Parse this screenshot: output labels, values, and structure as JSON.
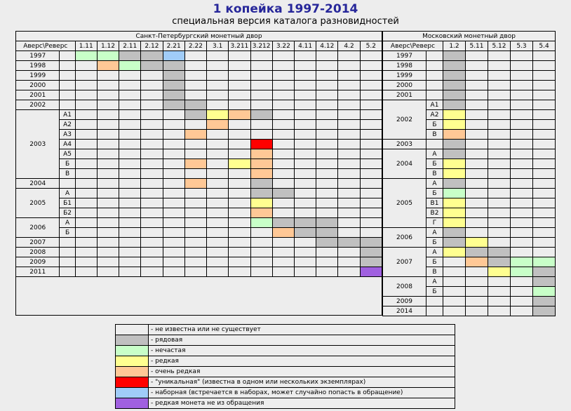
{
  "header": {
    "title": "1 копейка 1997-2014",
    "subtitle": "специальная версия каталога разновидностей"
  },
  "colors": {
    "0": "#ededed",
    "1": "#c0c0c0",
    "2": "#c8ffc8",
    "3": "#ffff90",
    "4": "#ffc896",
    "5": "#ff0000",
    "6": "#a0ccf8",
    "7": "#a060e0"
  },
  "spb": {
    "mint_label": "Санкт-Петербургский монетный двор",
    "corner_label": "Аверс\\Реверс",
    "columns": [
      "1.11",
      "1.12",
      "2.11",
      "2.12",
      "2.21",
      "2.22",
      "3.1",
      "3.211",
      "3.212",
      "3.22",
      "4.11",
      "4.12",
      "4.2",
      "5.2"
    ],
    "rows": [
      {
        "year": "1997",
        "sub": "",
        "cells": [
          2,
          2,
          1,
          1,
          6,
          0,
          0,
          0,
          0,
          0,
          0,
          0,
          0,
          0
        ]
      },
      {
        "year": "1998",
        "sub": "",
        "cells": [
          0,
          4,
          2,
          1,
          1,
          0,
          0,
          0,
          0,
          0,
          0,
          0,
          0,
          0
        ]
      },
      {
        "year": "1999",
        "sub": "",
        "cells": [
          0,
          0,
          0,
          0,
          1,
          0,
          0,
          0,
          0,
          0,
          0,
          0,
          0,
          0
        ]
      },
      {
        "year": "2000",
        "sub": "",
        "cells": [
          0,
          0,
          0,
          0,
          1,
          0,
          0,
          0,
          0,
          0,
          0,
          0,
          0,
          0
        ]
      },
      {
        "year": "2001",
        "sub": "",
        "cells": [
          0,
          0,
          0,
          0,
          1,
          0,
          0,
          0,
          0,
          0,
          0,
          0,
          0,
          0
        ]
      },
      {
        "year": "2002",
        "sub": "",
        "cells": [
          0,
          0,
          0,
          0,
          1,
          1,
          0,
          0,
          0,
          0,
          0,
          0,
          0,
          0
        ]
      },
      {
        "year": "2003",
        "sub": "А1",
        "cells": [
          0,
          0,
          0,
          0,
          0,
          1,
          3,
          4,
          1,
          0,
          0,
          0,
          0,
          0
        ]
      },
      {
        "year": "2003",
        "sub": "А2",
        "cells": [
          0,
          0,
          0,
          0,
          0,
          0,
          4,
          0,
          0,
          0,
          0,
          0,
          0,
          0
        ]
      },
      {
        "year": "2003",
        "sub": "А3",
        "cells": [
          0,
          0,
          0,
          0,
          0,
          4,
          0,
          0,
          0,
          0,
          0,
          0,
          0,
          0
        ]
      },
      {
        "year": "2003",
        "sub": "А4",
        "cells": [
          0,
          0,
          0,
          0,
          0,
          0,
          0,
          0,
          5,
          0,
          0,
          0,
          0,
          0
        ]
      },
      {
        "year": "2003",
        "sub": "А5",
        "cells": [
          0,
          0,
          0,
          0,
          0,
          0,
          0,
          0,
          4,
          0,
          0,
          0,
          0,
          0
        ]
      },
      {
        "year": "2003",
        "sub": "Б",
        "cells": [
          0,
          0,
          0,
          0,
          0,
          4,
          0,
          3,
          4,
          0,
          0,
          0,
          0,
          0
        ]
      },
      {
        "year": "2003",
        "sub": "В",
        "cells": [
          0,
          0,
          0,
          0,
          0,
          0,
          0,
          0,
          4,
          0,
          0,
          0,
          0,
          0
        ]
      },
      {
        "year": "2004",
        "sub": "",
        "cells": [
          0,
          0,
          0,
          0,
          0,
          4,
          0,
          0,
          1,
          0,
          0,
          0,
          0,
          0
        ]
      },
      {
        "year": "2005",
        "sub": "А",
        "cells": [
          0,
          0,
          0,
          0,
          0,
          0,
          0,
          0,
          1,
          1,
          0,
          0,
          0,
          0
        ]
      },
      {
        "year": "2005",
        "sub": "Б1",
        "cells": [
          0,
          0,
          0,
          0,
          0,
          0,
          0,
          0,
          3,
          0,
          0,
          0,
          0,
          0
        ]
      },
      {
        "year": "2005",
        "sub": "Б2",
        "cells": [
          0,
          0,
          0,
          0,
          0,
          0,
          0,
          0,
          4,
          0,
          0,
          0,
          0,
          0
        ]
      },
      {
        "year": "2006",
        "sub": "А",
        "cells": [
          0,
          0,
          0,
          0,
          0,
          0,
          0,
          0,
          2,
          1,
          1,
          1,
          0,
          0
        ]
      },
      {
        "year": "2006",
        "sub": "Б",
        "cells": [
          0,
          0,
          0,
          0,
          0,
          0,
          0,
          0,
          0,
          4,
          1,
          1,
          0,
          0
        ]
      },
      {
        "year": "2007",
        "sub": "",
        "cells": [
          0,
          0,
          0,
          0,
          0,
          0,
          0,
          0,
          0,
          0,
          0,
          1,
          1,
          1
        ]
      },
      {
        "year": "2008",
        "sub": "",
        "cells": [
          0,
          0,
          0,
          0,
          0,
          0,
          0,
          0,
          0,
          0,
          0,
          0,
          0,
          1
        ]
      },
      {
        "year": "2009",
        "sub": "",
        "cells": [
          0,
          0,
          0,
          0,
          0,
          0,
          0,
          0,
          0,
          0,
          0,
          0,
          0,
          1
        ]
      },
      {
        "year": "2011",
        "sub": "",
        "cells": [
          0,
          0,
          0,
          0,
          0,
          0,
          0,
          0,
          0,
          0,
          0,
          0,
          0,
          7
        ]
      }
    ]
  },
  "msk": {
    "mint_label": "Московский монетный двор",
    "corner_label": "Аверс\\Реверс",
    "columns": [
      "1.2",
      "5.11",
      "5.12",
      "5.3",
      "5.4"
    ],
    "rows": [
      {
        "year": "1997",
        "sub": "",
        "cells": [
          1,
          0,
          0,
          0,
          0
        ]
      },
      {
        "year": "1998",
        "sub": "",
        "cells": [
          1,
          0,
          0,
          0,
          0
        ]
      },
      {
        "year": "1999",
        "sub": "",
        "cells": [
          1,
          0,
          0,
          0,
          0
        ]
      },
      {
        "year": "2000",
        "sub": "",
        "cells": [
          1,
          0,
          0,
          0,
          0
        ]
      },
      {
        "year": "2001",
        "sub": "",
        "cells": [
          1,
          0,
          0,
          0,
          0
        ]
      },
      {
        "year": "2002",
        "sub": "А1",
        "cells": [
          1,
          0,
          0,
          0,
          0
        ]
      },
      {
        "year": "2002",
        "sub": "А2",
        "cells": [
          3,
          0,
          0,
          0,
          0
        ]
      },
      {
        "year": "2002",
        "sub": "Б",
        "cells": [
          3,
          0,
          0,
          0,
          0
        ]
      },
      {
        "year": "2002",
        "sub": "В",
        "cells": [
          4,
          0,
          0,
          0,
          0
        ]
      },
      {
        "year": "2003",
        "sub": "",
        "cells": [
          1,
          0,
          0,
          0,
          0
        ]
      },
      {
        "year": "2004",
        "sub": "А",
        "cells": [
          1,
          0,
          0,
          0,
          0
        ]
      },
      {
        "year": "2004",
        "sub": "Б",
        "cells": [
          3,
          0,
          0,
          0,
          0
        ]
      },
      {
        "year": "2004",
        "sub": "В",
        "cells": [
          3,
          0,
          0,
          0,
          0
        ]
      },
      {
        "year": "2005",
        "sub": "А",
        "cells": [
          1,
          0,
          0,
          0,
          0
        ]
      },
      {
        "year": "2005",
        "sub": "Б",
        "cells": [
          2,
          0,
          0,
          0,
          0
        ]
      },
      {
        "year": "2005",
        "sub": "В1",
        "cells": [
          3,
          0,
          0,
          0,
          0
        ]
      },
      {
        "year": "2005",
        "sub": "В2",
        "cells": [
          3,
          0,
          0,
          0,
          0
        ]
      },
      {
        "year": "2005",
        "sub": "Г",
        "cells": [
          3,
          0,
          0,
          0,
          0
        ]
      },
      {
        "year": "2006",
        "sub": "А",
        "cells": [
          1,
          0,
          0,
          0,
          0
        ]
      },
      {
        "year": "2006",
        "sub": "Б",
        "cells": [
          1,
          3,
          0,
          0,
          0
        ]
      },
      {
        "year": "2007",
        "sub": "А",
        "cells": [
          3,
          1,
          1,
          0,
          0
        ]
      },
      {
        "year": "2007",
        "sub": "Б",
        "cells": [
          0,
          4,
          1,
          2,
          2
        ]
      },
      {
        "year": "2007",
        "sub": "В",
        "cells": [
          0,
          0,
          3,
          2,
          1
        ]
      },
      {
        "year": "2008",
        "sub": "А",
        "cells": [
          0,
          0,
          0,
          0,
          1
        ]
      },
      {
        "year": "2008",
        "sub": "Б",
        "cells": [
          0,
          0,
          0,
          0,
          2
        ]
      },
      {
        "year": "2009",
        "sub": "",
        "cells": [
          0,
          0,
          0,
          0,
          1
        ]
      },
      {
        "year": "2014",
        "sub": "",
        "cells": [
          0,
          0,
          0,
          0,
          1
        ]
      }
    ]
  },
  "legend": [
    {
      "color": 0,
      "text": "- не известна или не существует"
    },
    {
      "color": 1,
      "text": "- рядовая"
    },
    {
      "color": 2,
      "text": "- нечастая"
    },
    {
      "color": 3,
      "text": "- редкая"
    },
    {
      "color": 4,
      "text": "- очень редкая"
    },
    {
      "color": 5,
      "text": "- \"уникальная\" (известна в одном или нескольких экземплярах)"
    },
    {
      "color": 6,
      "text": "- наборная (встречается в наборах, может случайно попасть в обращение)"
    },
    {
      "color": 7,
      "text": "- редкая монета не из обращения"
    }
  ]
}
